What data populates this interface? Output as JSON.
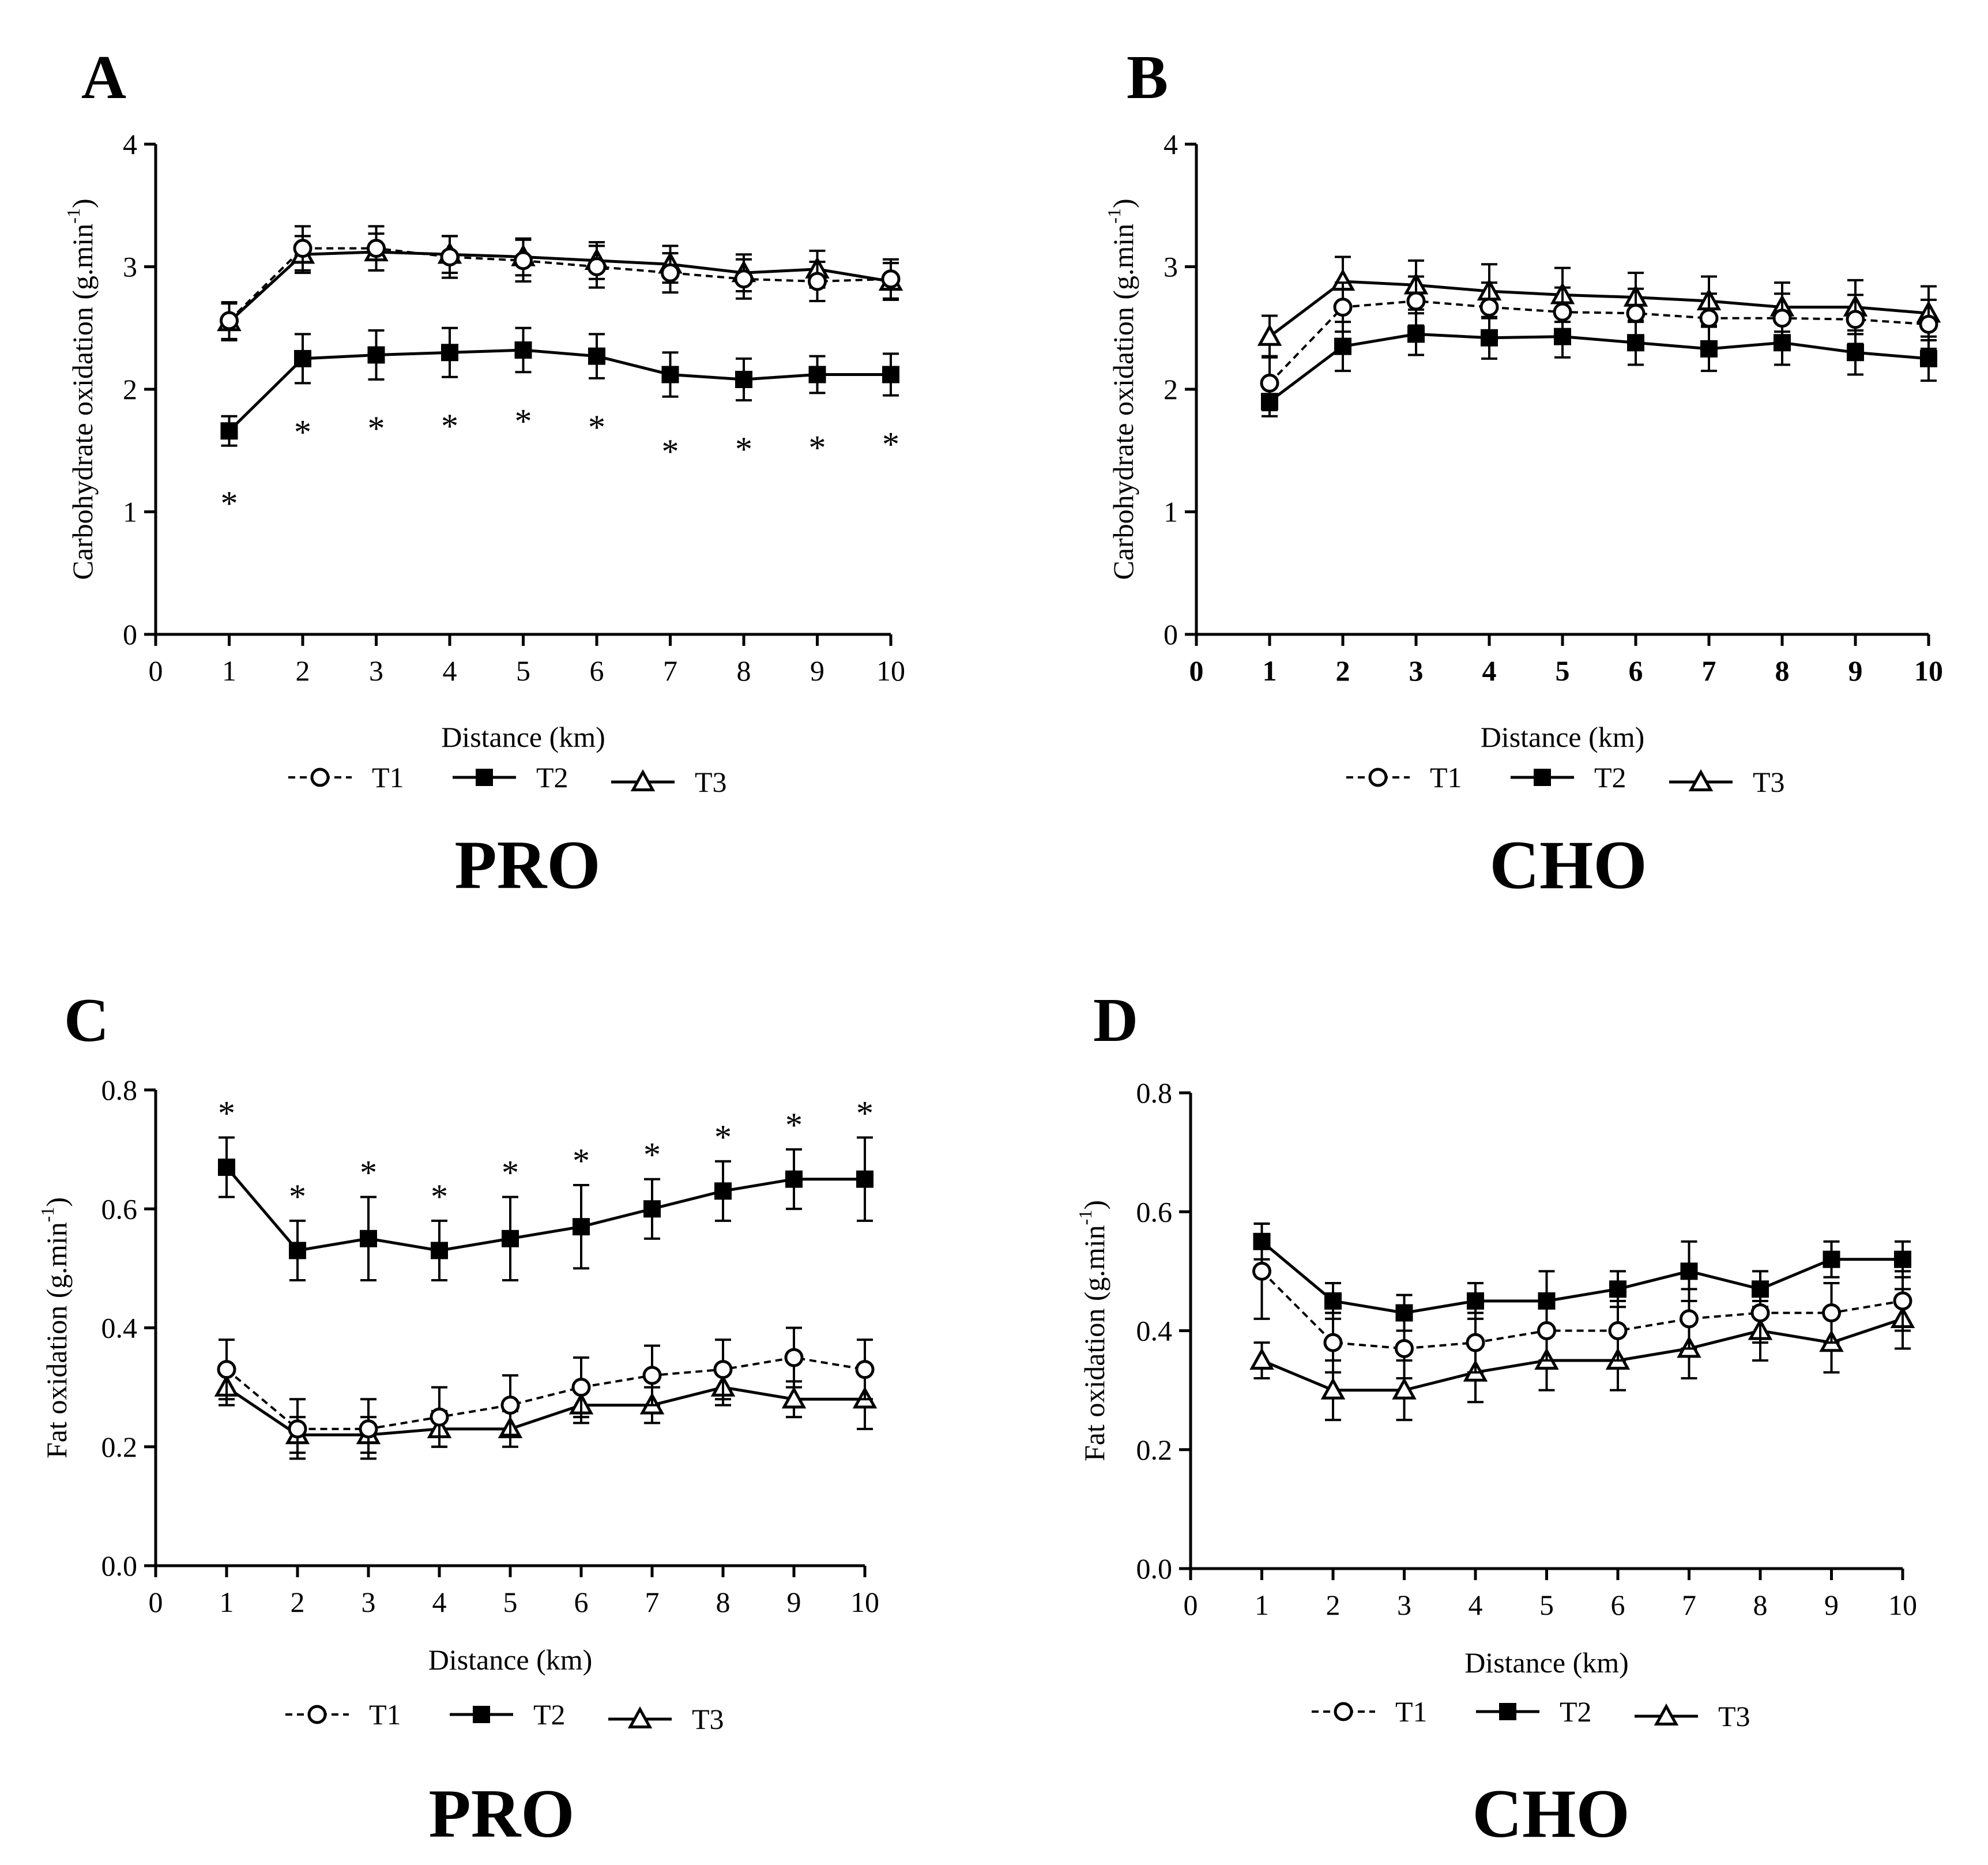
{
  "chart_data": [
    {
      "panel": "A",
      "type": "line",
      "group_label": "PRO",
      "xlabel": "Distance (km)",
      "ylabel": "Carbohydrate oxidation (g.min",
      "ylabel_sup": "-1",
      "ylabel_close": ")",
      "xlim": [
        0,
        10
      ],
      "ylim": [
        0,
        4
      ],
      "xticks": [
        "0",
        "1",
        "2",
        "3",
        "4",
        "5",
        "6",
        "7",
        "8",
        "9",
        "10"
      ],
      "yticks": [
        "0",
        "1",
        "2",
        "3",
        "4"
      ],
      "x": [
        1,
        2,
        3,
        4,
        5,
        6,
        7,
        8,
        9,
        10
      ],
      "series": [
        {
          "name": "T1",
          "values": [
            2.56,
            3.15,
            3.15,
            3.08,
            3.05,
            3.0,
            2.95,
            2.9,
            2.88,
            2.9
          ],
          "errors": [
            0.15,
            0.18,
            0.18,
            0.17,
            0.17,
            0.17,
            0.16,
            0.16,
            0.16,
            0.16
          ]
        },
        {
          "name": "T2",
          "values": [
            1.66,
            2.25,
            2.28,
            2.3,
            2.32,
            2.27,
            2.12,
            2.08,
            2.12,
            2.12
          ],
          "errors": [
            0.12,
            0.2,
            0.2,
            0.2,
            0.18,
            0.18,
            0.18,
            0.17,
            0.15,
            0.17
          ]
        },
        {
          "name": "T3",
          "values": [
            2.55,
            3.1,
            3.12,
            3.1,
            3.08,
            3.05,
            3.02,
            2.95,
            2.98,
            2.88
          ],
          "errors": [
            0.15,
            0.15,
            0.15,
            0.15,
            0.15,
            0.15,
            0.15,
            0.15,
            0.15,
            0.15
          ]
        }
      ],
      "significance": {
        "series": "T2",
        "position": "below",
        "label": "*",
        "x": [
          1,
          2,
          3,
          4,
          5,
          6,
          7,
          8,
          9,
          10
        ]
      },
      "legend": [
        "T1",
        "T2",
        "T3"
      ],
      "bold_ticks": false
    },
    {
      "panel": "B",
      "type": "line",
      "group_label": "CHO",
      "xlabel": "Distance (km)",
      "ylabel": "Carbohydrate oxidation (g.min",
      "ylabel_sup": "-1",
      "ylabel_close": ")",
      "xlim": [
        0,
        10
      ],
      "ylim": [
        0,
        4
      ],
      "xticks": [
        "0",
        "1",
        "2",
        "3",
        "4",
        "5",
        "6",
        "7",
        "8",
        "9",
        "10"
      ],
      "yticks": [
        "0",
        "1",
        "2",
        "3",
        "4"
      ],
      "x": [
        1,
        2,
        3,
        4,
        5,
        6,
        7,
        8,
        9,
        10
      ],
      "series": [
        {
          "name": "T1",
          "values": [
            2.05,
            2.67,
            2.72,
            2.67,
            2.63,
            2.62,
            2.58,
            2.58,
            2.57,
            2.53
          ],
          "errors": [
            0.22,
            0.2,
            0.2,
            0.2,
            0.2,
            0.2,
            0.2,
            0.2,
            0.2,
            0.2
          ]
        },
        {
          "name": "T2",
          "values": [
            1.9,
            2.35,
            2.45,
            2.42,
            2.43,
            2.38,
            2.33,
            2.38,
            2.3,
            2.25
          ],
          "errors": [
            0.12,
            0.2,
            0.17,
            0.17,
            0.17,
            0.18,
            0.18,
            0.18,
            0.18,
            0.18
          ]
        },
        {
          "name": "T3",
          "values": [
            2.43,
            2.88,
            2.85,
            2.8,
            2.77,
            2.75,
            2.72,
            2.67,
            2.67,
            2.62
          ],
          "errors": [
            0.17,
            0.2,
            0.2,
            0.22,
            0.22,
            0.2,
            0.2,
            0.2,
            0.22,
            0.22
          ]
        }
      ],
      "significance": null,
      "legend": [
        "T1",
        "T2",
        "T3"
      ],
      "bold_ticks": true
    },
    {
      "panel": "C",
      "type": "line",
      "group_label": "PRO",
      "xlabel": "Distance (km)",
      "ylabel": "Fat oxidation (g.min",
      "ylabel_sup": "-1",
      "ylabel_close": ")",
      "xlim": [
        0,
        10
      ],
      "ylim": [
        0,
        0.8
      ],
      "xticks": [
        "0",
        "1",
        "2",
        "3",
        "4",
        "5",
        "6",
        "7",
        "8",
        "9",
        "10"
      ],
      "yticks": [
        "0.0",
        "0.2",
        "0.4",
        "0.6",
        "0.8"
      ],
      "x": [
        1,
        2,
        3,
        4,
        5,
        6,
        7,
        8,
        9,
        10
      ],
      "series": [
        {
          "name": "T1",
          "values": [
            0.33,
            0.23,
            0.23,
            0.25,
            0.27,
            0.3,
            0.32,
            0.33,
            0.35,
            0.33
          ],
          "errors": [
            0.05,
            0.05,
            0.05,
            0.05,
            0.05,
            0.05,
            0.05,
            0.05,
            0.05,
            0.05
          ]
        },
        {
          "name": "T2",
          "values": [
            0.67,
            0.53,
            0.55,
            0.53,
            0.55,
            0.57,
            0.6,
            0.63,
            0.65,
            0.65
          ],
          "errors": [
            0.05,
            0.05,
            0.07,
            0.05,
            0.07,
            0.07,
            0.05,
            0.05,
            0.05,
            0.07
          ]
        },
        {
          "name": "T3",
          "values": [
            0.3,
            0.22,
            0.22,
            0.23,
            0.23,
            0.27,
            0.27,
            0.3,
            0.28,
            0.28
          ],
          "errors": [
            0.03,
            0.03,
            0.03,
            0.03,
            0.03,
            0.03,
            0.03,
            0.03,
            0.03,
            0.05
          ]
        }
      ],
      "significance": {
        "series": "T2",
        "position": "above",
        "label": "*",
        "x": [
          1,
          2,
          3,
          4,
          5,
          6,
          7,
          8,
          9,
          10
        ]
      },
      "legend": [
        "T1",
        "T2",
        "T3"
      ],
      "bold_ticks": false
    },
    {
      "panel": "D",
      "type": "line",
      "group_label": "CHO",
      "xlabel": "Distance (km)",
      "ylabel": "Fat oxidation (g.min",
      "ylabel_sup": "-1",
      "ylabel_close": ")",
      "xlim": [
        0,
        10
      ],
      "ylim": [
        0,
        0.8
      ],
      "xticks": [
        "0",
        "1",
        "2",
        "3",
        "4",
        "5",
        "6",
        "7",
        "8",
        "9",
        "10"
      ],
      "yticks": [
        "0.0",
        "0.2",
        "0.4",
        "0.6",
        "0.8"
      ],
      "x": [
        1,
        2,
        3,
        4,
        5,
        6,
        7,
        8,
        9,
        10
      ],
      "series": [
        {
          "name": "T1",
          "values": [
            0.5,
            0.38,
            0.37,
            0.38,
            0.4,
            0.4,
            0.42,
            0.43,
            0.43,
            0.45
          ],
          "errors": [
            0.08,
            0.05,
            0.05,
            0.05,
            0.05,
            0.05,
            0.05,
            0.05,
            0.05,
            0.05
          ]
        },
        {
          "name": "T2",
          "values": [
            0.55,
            0.45,
            0.43,
            0.45,
            0.45,
            0.47,
            0.5,
            0.47,
            0.52,
            0.52
          ],
          "errors": [
            0.03,
            0.03,
            0.03,
            0.03,
            0.05,
            0.03,
            0.05,
            0.03,
            0.03,
            0.03
          ]
        },
        {
          "name": "T3",
          "values": [
            0.35,
            0.3,
            0.3,
            0.33,
            0.35,
            0.35,
            0.37,
            0.4,
            0.38,
            0.42
          ],
          "errors": [
            0.03,
            0.05,
            0.05,
            0.05,
            0.05,
            0.05,
            0.05,
            0.05,
            0.05,
            0.05
          ]
        }
      ],
      "significance": null,
      "legend": [
        "T1",
        "T2",
        "T3"
      ],
      "bold_ticks": false
    }
  ]
}
